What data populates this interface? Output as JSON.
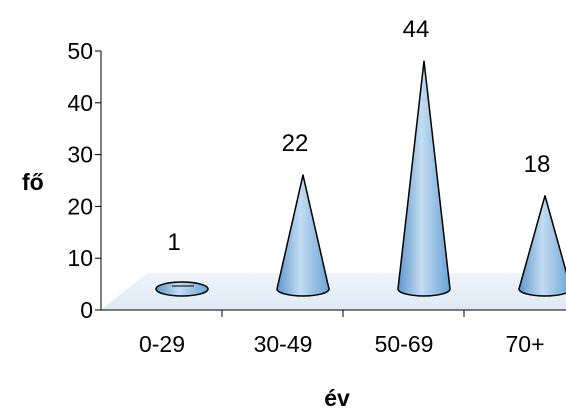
{
  "chart_data": {
    "type": "bar",
    "mark_shape": "cone",
    "categories": [
      "0-29",
      "30-49",
      "50-69",
      "70+"
    ],
    "values": [
      1,
      22,
      44,
      18
    ],
    "data_labels": [
      "1",
      "22",
      "44",
      "18"
    ],
    "xlabel": "év",
    "ylabel": "fő",
    "ylim": [
      0,
      50
    ],
    "yticks": [
      0,
      10,
      20,
      30,
      40,
      50
    ],
    "grid": true,
    "legend": "none",
    "colors": {
      "cone_fill": "#7fb2de",
      "cone_light": "#c3dcf2",
      "cone_outline": "#000000",
      "floor": "#e6eef7",
      "wall": "#ffffff"
    }
  }
}
